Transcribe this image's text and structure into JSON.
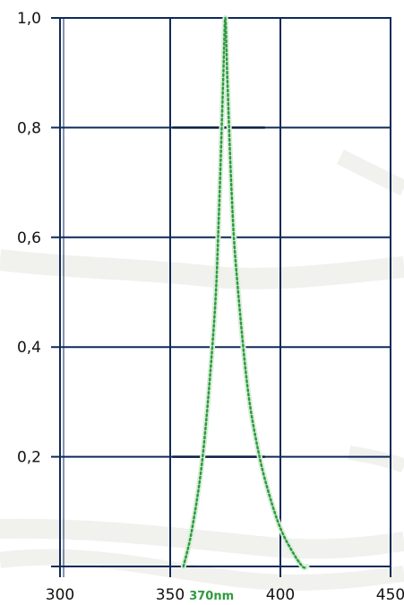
{
  "chart_data": {
    "type": "line",
    "title": "",
    "xlabel": "",
    "ylabel": "",
    "xlim": [
      300,
      450
    ],
    "ylim": [
      0,
      1.0
    ],
    "grid": true,
    "x_ticks": [
      300,
      350,
      400,
      450
    ],
    "x_tick_labels": [
      "300",
      "350",
      "400",
      "450"
    ],
    "y_ticks": [
      0.2,
      0.4,
      0.6,
      0.8,
      1.0
    ],
    "y_tick_labels": [
      "0,2",
      "0,4",
      "0,6",
      "0,8",
      "1,0"
    ],
    "annotation": {
      "text": "370nm",
      "x": 370
    },
    "series": [
      {
        "color": "#2e9a40",
        "style": "dotted",
        "x": [
          356,
          360,
          365,
          370,
          372,
          374,
          375,
          376,
          378,
          380,
          385,
          390,
          395,
          400,
          405,
          410,
          412
        ],
        "y": [
          0.0,
          0.07,
          0.21,
          0.45,
          0.63,
          0.88,
          1.0,
          0.88,
          0.67,
          0.54,
          0.33,
          0.21,
          0.13,
          0.07,
          0.03,
          0.0,
          0.0
        ]
      }
    ],
    "colors": {
      "grid": "#0f2a5a",
      "axis": "#0f2a5a",
      "annotation": "#2e9a40"
    }
  }
}
